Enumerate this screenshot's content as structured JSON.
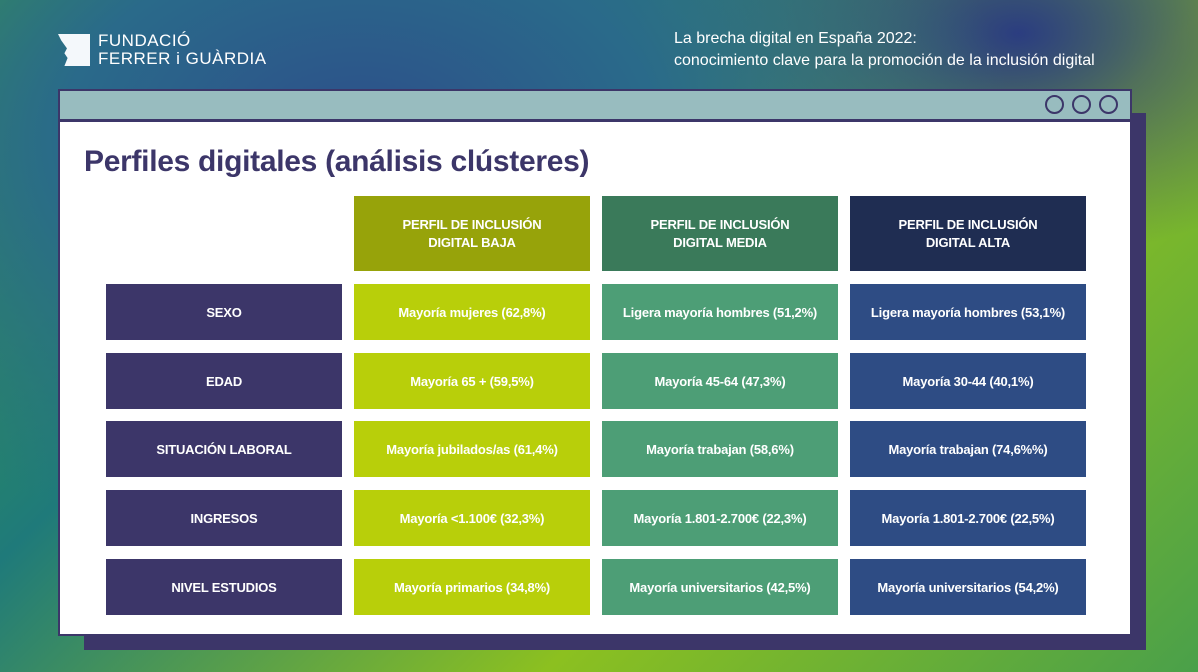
{
  "logo": {
    "line1": "FUNDACIÓ",
    "line2": "FERRER i GUÀRDIA"
  },
  "report": {
    "line1": "La brecha digital en España 2022:",
    "line2": "conocimiento clave para la promoción de la inclusión digital"
  },
  "title": "Perfiles digitales (análisis clústeres)",
  "colors": {
    "baja": "#b8cf0a",
    "media": "#4d9e76",
    "alta": "#2e4c84",
    "label": "#3c3669"
  },
  "headers": [
    "PERFIL DE INCLUSIÓN DIGITAL BAJA",
    "PERFIL DE INCLUSIÓN DIGITAL MEDIA",
    "PERFIL DE INCLUSIÓN DIGITAL ALTA"
  ],
  "rows": [
    {
      "label": "SEXO",
      "values": [
        "Mayoría mujeres (62,8%)",
        "Ligera mayoría hombres (51,2%)",
        "Ligera mayoría hombres (53,1%)"
      ]
    },
    {
      "label": "EDAD",
      "values": [
        "Mayoría 65 + (59,5%)",
        "Mayoría 45-64 (47,3%)",
        "Mayoría 30-44 (40,1%)"
      ]
    },
    {
      "label": "SITUACIÓN LABORAL",
      "values": [
        "Mayoría jubilados/as (61,4%)",
        "Mayoría trabajan (58,6%)",
        "Mayoría trabajan (74,6%%)"
      ]
    },
    {
      "label": "INGRESOS",
      "values": [
        "Mayoría <1.100€ (32,3%)",
        "Mayoría 1.801-2.700€ (22,3%)",
        "Mayoría 1.801-2.700€ (22,5%)"
      ]
    },
    {
      "label": "NIVEL ESTUDIOS",
      "values": [
        "Mayoría primarios (34,8%)",
        "Mayoría universitarios (42,5%)",
        "Mayoría universitarios (54,2%)"
      ]
    }
  ]
}
